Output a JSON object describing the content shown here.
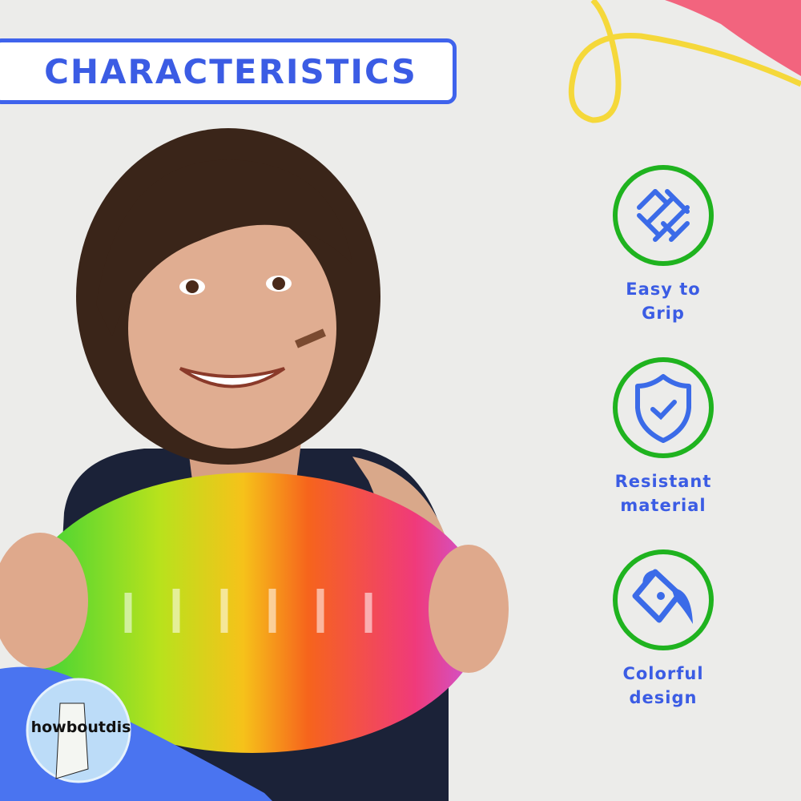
{
  "title": "CHARACTERISTICS",
  "features": [
    {
      "icon": "woven-grip-icon",
      "line1": "Easy to",
      "line2": "Grip"
    },
    {
      "icon": "shield-check-icon",
      "line1": "Resistant",
      "line2": "material"
    },
    {
      "icon": "paint-bucket-icon",
      "line1": "Colorful",
      "line2": "design"
    }
  ],
  "logo": {
    "text": "howboutdis"
  },
  "colors": {
    "accent_blue": "#3b5ce4",
    "circle_green": "#1fb31f",
    "pink_blob": "#f2647e",
    "yellow_line": "#f5d83a"
  }
}
